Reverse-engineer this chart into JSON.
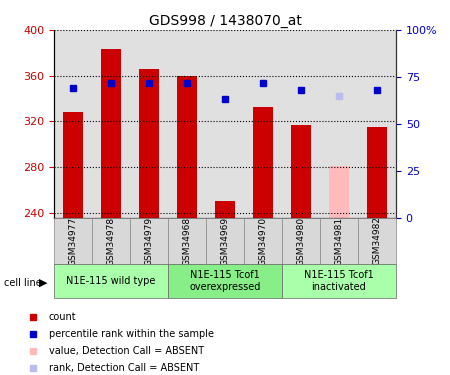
{
  "title": "GDS998 / 1438070_at",
  "samples": [
    "GSM34977",
    "GSM34978",
    "GSM34979",
    "GSM34968",
    "GSM34969",
    "GSM34970",
    "GSM34980",
    "GSM34981",
    "GSM34982"
  ],
  "bar_values": [
    328,
    383,
    366,
    360,
    250,
    333,
    317,
    0,
    315
  ],
  "bar_absent_values": [
    0,
    0,
    0,
    0,
    0,
    0,
    0,
    281,
    0
  ],
  "rank_values": [
    69,
    72,
    72,
    72,
    63,
    72,
    68,
    0,
    68
  ],
  "rank_absent_values": [
    0,
    0,
    0,
    0,
    0,
    0,
    0,
    65,
    0
  ],
  "bar_color": "#cc0000",
  "bar_absent_color": "#ffbbbb",
  "rank_color": "#0000cc",
  "rank_absent_color": "#bbbbee",
  "ymin": 236,
  "ymax": 400,
  "y_ticks": [
    240,
    280,
    320,
    360,
    400
  ],
  "y2min": 0,
  "y2max": 100,
  "y2_ticks": [
    0,
    25,
    50,
    75,
    100
  ],
  "y2_labels": [
    "0",
    "25",
    "50",
    "75",
    "100%"
  ],
  "groups": [
    {
      "label": "N1E-115 wild type",
      "start": 0,
      "end": 3,
      "color": "#aaffaa"
    },
    {
      "label": "N1E-115 Tcof1\noverexpressed",
      "start": 3,
      "end": 6,
      "color": "#88ee88"
    },
    {
      "label": "N1E-115 Tcof1\ninactivated",
      "start": 6,
      "end": 9,
      "color": "#aaffaa"
    }
  ],
  "bar_width": 0.55,
  "rank_marker_size": 5
}
